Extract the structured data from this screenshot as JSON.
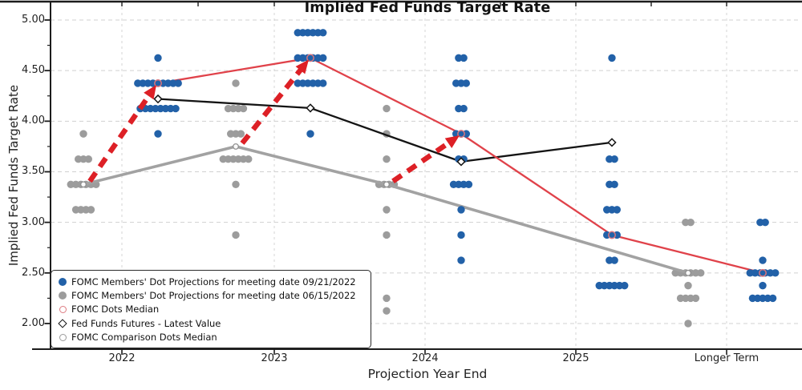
{
  "title": "Implied Fed Funds Target Rate",
  "axes": {
    "x_label": "Projection Year End",
    "y_label": "Implied Fed Funds Target Rate",
    "x_ticks": [
      "2022",
      "2023",
      "2024",
      "2025",
      "Longer Term"
    ],
    "y_ticks": [
      "5.00",
      "4.50",
      "4.00",
      "3.50",
      "3.00",
      "2.50",
      "2.00"
    ]
  },
  "legend": {
    "items": [
      {
        "marker": "filled-circle",
        "color": "#2261a8",
        "label": "FOMC Members' Dot Projections for meeting date 09/21/2022"
      },
      {
        "marker": "filled-circle",
        "color": "#9c9c9c",
        "label": "FOMC Members' Dot Projections for meeting date 06/15/2022"
      },
      {
        "marker": "open-circle",
        "color": "#dd7a80",
        "label": "FOMC Dots Median"
      },
      {
        "marker": "open-diamond",
        "color": "#111111",
        "label": "Fed Funds Futures - Latest Value"
      },
      {
        "marker": "open-circle",
        "color": "#9a9a9a",
        "label": "FOMC Comparison Dots Median"
      }
    ]
  },
  "colors": {
    "blue_dots": "#2261a8",
    "gray_dots": "#9c9c9c",
    "red_line": "#e0424a",
    "red_arrow": "#dd2026",
    "black_line": "#141414",
    "gray_line": "#a2a2a2",
    "grid": "#cbcbcb",
    "spine": "#1c1c1c"
  },
  "chart_data": {
    "type": "scatter",
    "title": "Implied Fed Funds Target Rate",
    "xlabel": "Projection Year End",
    "ylabel": "Implied Fed Funds Target Rate",
    "x_categories": [
      "2022",
      "2023",
      "2024",
      "2025",
      "Longer Term"
    ],
    "ylim": [
      1.78,
      5.05
    ],
    "y_major_ticks": [
      5.0,
      4.5,
      4.0,
      3.5,
      3.0,
      2.5,
      2.0
    ],
    "grid": true,
    "legend_position": "lower-left",
    "series": [
      {
        "name": "FOMC Members' Dot Projections for meeting date 09/21/2022",
        "type": "dot-cluster",
        "color": "#2261a8",
        "side": "right",
        "dots": {
          "2022": {
            "4.625": 1,
            "4.375": 9,
            "4.125": 8,
            "3.875": 1
          },
          "2023": {
            "4.875": 6,
            "4.625": 6,
            "4.375": 6,
            "3.875": 1
          },
          "2024": {
            "4.625": 2,
            "4.375": 3,
            "4.125": 2,
            "3.875": 3,
            "3.625": 2,
            "3.375": 4,
            "3.125": 1,
            "2.875": 1,
            "2.625": 1
          },
          "2025": {
            "4.625": 1,
            "3.625": 2,
            "3.375": 2,
            "3.125": 3,
            "2.875": 3,
            "2.625": 2,
            "2.375": 6
          },
          "Longer Term": {
            "3.0": 2,
            "2.625": 1,
            "2.5": 6,
            "2.375": 1,
            "2.25": 5
          }
        }
      },
      {
        "name": "FOMC Members' Dot Projections for meeting date 06/15/2022",
        "type": "dot-cluster",
        "color": "#9c9c9c",
        "side": "left",
        "dots": {
          "2022": {
            "3.875": 1,
            "3.625": 3,
            "3.375": 6,
            "3.125": 4
          },
          "2023": {
            "4.375": 1,
            "4.125": 4,
            "3.875": 3,
            "3.625": 6,
            "3.375": 1,
            "2.875": 1
          },
          "2024": {
            "4.125": 1,
            "3.875": 1,
            "3.625": 1,
            "3.375": 4,
            "3.125": 1,
            "2.875": 1,
            "2.25": 1,
            "2.125": 1
          },
          "2025": {},
          "Longer Term": {
            "3.0": 2,
            "2.5": 6,
            "2.375": 1,
            "2.25": 4,
            "2.0": 1
          }
        }
      },
      {
        "name": "FOMC Dots Median",
        "type": "line",
        "marker": "open-circle",
        "color": "#e0424a",
        "side": "right",
        "values": {
          "2022": 4.375,
          "2023": 4.625,
          "2024": 3.875,
          "2025": 2.875,
          "Longer Term": 2.5
        }
      },
      {
        "name": "Fed Funds Futures - Latest Value",
        "type": "line",
        "marker": "open-diamond",
        "color": "#141414",
        "side": "right",
        "values": {
          "2022": 4.22,
          "2023": 4.13,
          "2024": 3.6,
          "2025": 3.79
        }
      },
      {
        "name": "FOMC Comparison Dots Median",
        "type": "line",
        "marker": "open-circle-gray",
        "color": "#a2a2a2",
        "side": "left",
        "values": {
          "2022": 3.375,
          "2023": 3.75,
          "2024": 3.375,
          "Longer Term": 2.5
        }
      }
    ],
    "arrows": [
      {
        "year": "2022",
        "from_value": 3.375,
        "to_value": 4.375
      },
      {
        "year": "2023",
        "from_value": 3.75,
        "to_value": 4.625
      },
      {
        "year": "2024",
        "from_value": 3.375,
        "to_value": 3.875
      }
    ],
    "arrows_meaning": "red dashed arrows: shift of FOMC median dots from 06/15/2022 meeting to 09/21/2022 meeting"
  }
}
